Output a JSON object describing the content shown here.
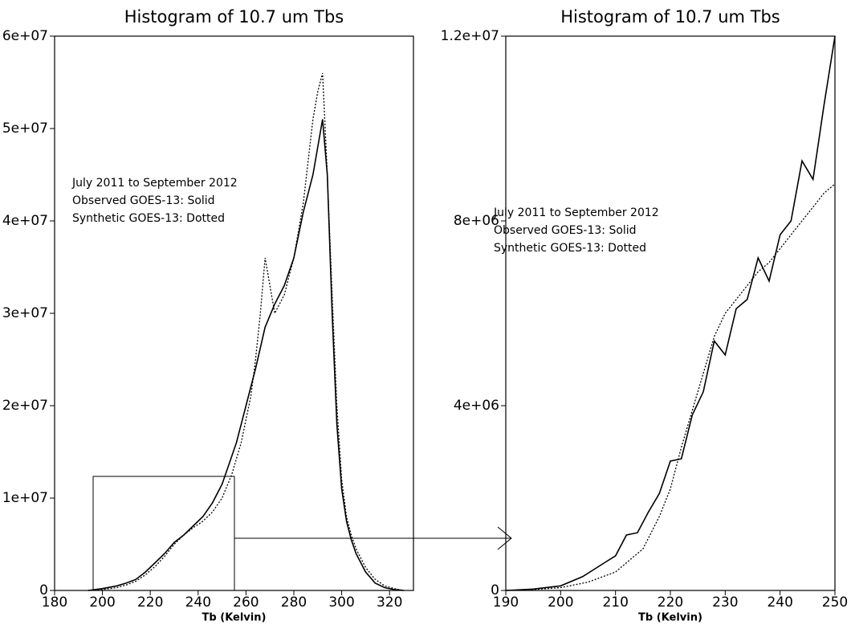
{
  "chart_data": [
    {
      "type": "line",
      "title": "Histogram of 10.7 um Tbs",
      "xlabel": "Tb (Kelvin)",
      "xlim": [
        180,
        330
      ],
      "ylim": [
        0,
        60000000
      ],
      "xticks": [
        180,
        200,
        220,
        240,
        260,
        280,
        300,
        320
      ],
      "yticks": [
        0,
        {
          "value": 10000000,
          "label": "1e+07"
        },
        {
          "value": 20000000,
          "label": "2e+07"
        },
        {
          "value": 30000000,
          "label": "3e+07"
        },
        {
          "value": 40000000,
          "label": "4e+07"
        },
        {
          "value": 50000000,
          "label": "5e+07"
        },
        {
          "value": 60000000,
          "label": "6e+07"
        }
      ],
      "annotations": [
        "July 2011 to September 2012",
        "Observed GOES-13: Solid",
        "Synthetic GOES-13: Dotted"
      ],
      "series": [
        {
          "color": "#000000",
          "style": "solid",
          "x": [
            194,
            200,
            206,
            210,
            214,
            218,
            222,
            226,
            230,
            234,
            238,
            242,
            246,
            250,
            252,
            256,
            260,
            264,
            268,
            272,
            276,
            280,
            284,
            288,
            290,
            292,
            294,
            296,
            298,
            300,
            302,
            304,
            306,
            310,
            314,
            318,
            322,
            326
          ],
          "values": [
            0,
            200000,
            500000,
            800000,
            1200000,
            2000000,
            3000000,
            4000000,
            5200000,
            6000000,
            7000000,
            8000000,
            9500000,
            11500000,
            13000000,
            16000000,
            20000000,
            24000000,
            28500000,
            31000000,
            33000000,
            36000000,
            41000000,
            45000000,
            48000000,
            51000000,
            45000000,
            30000000,
            18000000,
            11000000,
            7500000,
            5500000,
            4000000,
            2000000,
            800000,
            300000,
            100000,
            0
          ]
        },
        {
          "color": "#000000",
          "style": "dotted",
          "x": [
            194,
            200,
            206,
            210,
            214,
            218,
            222,
            226,
            230,
            234,
            238,
            242,
            246,
            250,
            254,
            258,
            262,
            264,
            266,
            268,
            270,
            272,
            276,
            280,
            284,
            288,
            290,
            292,
            294,
            296,
            298,
            300,
            302,
            304,
            306,
            310,
            314,
            318,
            322,
            326
          ],
          "values": [
            0,
            100000,
            300000,
            600000,
            1000000,
            1700000,
            2600000,
            3700000,
            5000000,
            6000000,
            6800000,
            7500000,
            8500000,
            10000000,
            12500000,
            16000000,
            21000000,
            25000000,
            30000000,
            36000000,
            33000000,
            30000000,
            32000000,
            36000000,
            42000000,
            51000000,
            54000000,
            56000000,
            45000000,
            32000000,
            20000000,
            12000000,
            8000000,
            6000000,
            4500000,
            2500000,
            1200000,
            500000,
            200000,
            0
          ]
        }
      ]
    },
    {
      "type": "line",
      "title": "Histogram of 10.7 um Tbs",
      "xlabel": "Tb (Kelvin)",
      "xlim": [
        190,
        250
      ],
      "ylim": [
        0,
        12000000
      ],
      "xticks": [
        190,
        200,
        210,
        220,
        230,
        240,
        250
      ],
      "yticks": [
        0,
        {
          "value": 4000000,
          "label": "4e+06"
        },
        {
          "value": 8000000,
          "label": "8e+06"
        },
        {
          "value": 12000000,
          "label": "1.2e+07"
        }
      ],
      "annotations": [
        "July 2011 to September 2012",
        "Observed GOES-13: Solid",
        "Synthetic GOES-13: Dotted"
      ],
      "series": [
        {
          "color": "#000000",
          "style": "solid",
          "x": [
            190,
            195,
            200,
            204,
            208,
            210,
            212,
            214,
            216,
            218,
            220,
            222,
            224,
            226,
            228,
            230,
            232,
            234,
            236,
            238,
            240,
            242,
            244,
            246,
            248,
            250
          ],
          "values": [
            0,
            30000,
            100000,
            300000,
            600000,
            750000,
            1200000,
            1250000,
            1700000,
            2100000,
            2800000,
            2850000,
            3800000,
            4300000,
            5400000,
            5100000,
            6100000,
            6300000,
            7200000,
            6700000,
            7700000,
            8000000,
            9300000,
            8900000,
            10500000,
            12000000
          ]
        },
        {
          "color": "#000000",
          "style": "dotted",
          "x": [
            190,
            195,
            200,
            205,
            210,
            215,
            218,
            220,
            222,
            224,
            226,
            228,
            230,
            232,
            234,
            236,
            238,
            240,
            242,
            244,
            246,
            248,
            250
          ],
          "values": [
            0,
            20000,
            60000,
            180000,
            400000,
            900000,
            1600000,
            2200000,
            3100000,
            3900000,
            4700000,
            5500000,
            6000000,
            6300000,
            6600000,
            6900000,
            7100000,
            7400000,
            7700000,
            8000000,
            8300000,
            8600000,
            8800000
          ]
        }
      ]
    }
  ]
}
